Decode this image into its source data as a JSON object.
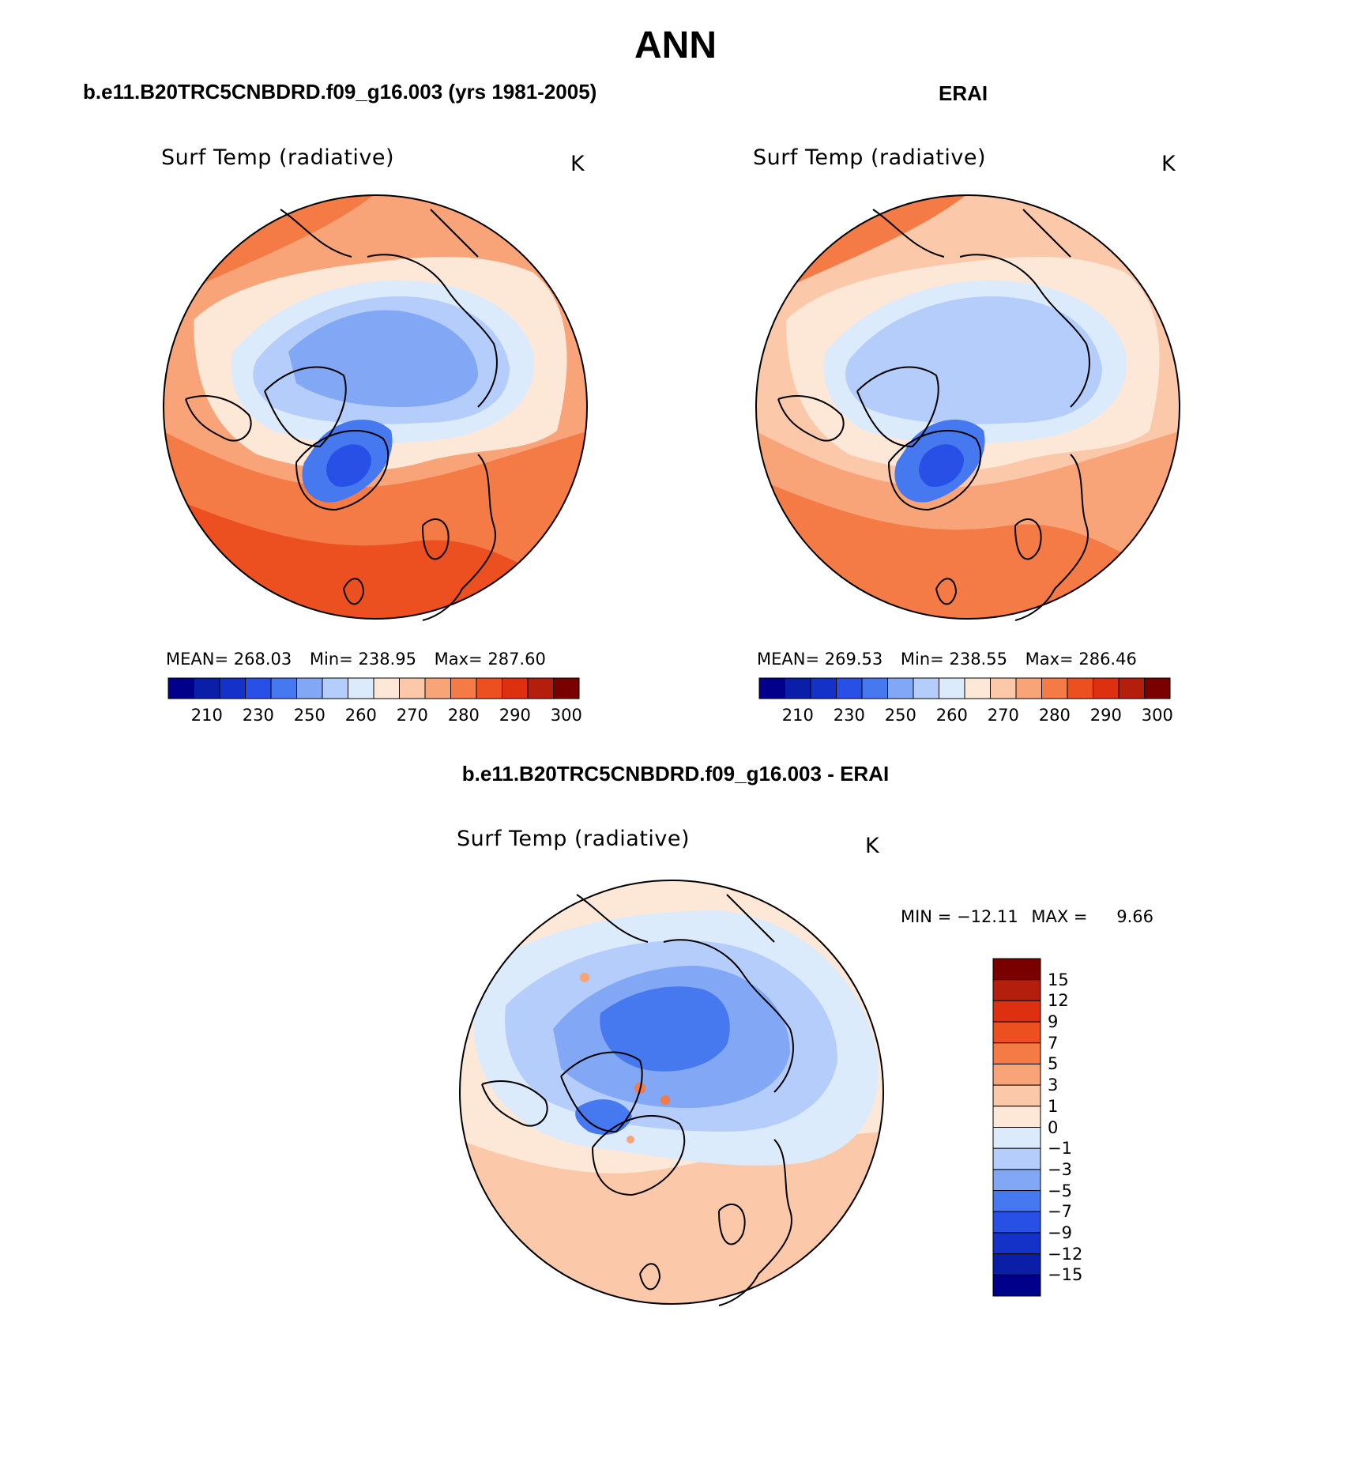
{
  "title": "ANN",
  "panels": [
    {
      "subtitle": "b.e11.B20TRC5CNBDRD.f09_g16.003 (yrs 1981-2005)",
      "variable": "Surf Temp (radiative)",
      "units": "K",
      "stats": {
        "mean_label": "MEAN=",
        "mean": "268.03",
        "min_label": "Min=",
        "min": "238.95",
        "max_label": "Max=",
        "max": "287.60"
      }
    },
    {
      "subtitle": "ERAI",
      "variable": "Surf Temp (radiative)",
      "units": "K",
      "stats": {
        "mean_label": "MEAN=",
        "mean": "269.53",
        "min_label": "Min=",
        "min": "238.55",
        "max_label": "Max=",
        "max": "286.46"
      }
    },
    {
      "subtitle": "b.e11.B20TRC5CNBDRD.f09_g16.003 - ERAI",
      "variable": "Surf Temp (radiative)",
      "units": "K",
      "stats": {
        "min_label": "MIN =",
        "min": "−12.11",
        "max_label": "MAX =",
        "max": "9.66"
      }
    }
  ],
  "abs_colorbar": {
    "colors": [
      "#00008b",
      "#0a1ea8",
      "#1432c8",
      "#2850e6",
      "#4678f0",
      "#82a8f5",
      "#b4cdfa",
      "#dcebfc",
      "#fde8d8",
      "#fcc8aa",
      "#f8a478",
      "#f47a46",
      "#ec5020",
      "#dc3010",
      "#b41e0c",
      "#7a0000"
    ],
    "tick_labels": [
      "210",
      "230",
      "250",
      "260",
      "270",
      "280",
      "290",
      "300"
    ]
  },
  "diff_colorbar": {
    "colors": [
      "#00008b",
      "#0a1ea8",
      "#1432c8",
      "#2850e6",
      "#4678f0",
      "#82a8f5",
      "#b4cdfa",
      "#dcebfc",
      "#fde8d8",
      "#fcc8aa",
      "#f8a478",
      "#f47a46",
      "#ec5020",
      "#dc3010",
      "#b41e0c",
      "#7a0000"
    ],
    "tick_labels": [
      "−15",
      "−12",
      "−9",
      "−7",
      "−5",
      "−3",
      "−1",
      "0",
      "1",
      "3",
      "5",
      "7",
      "9",
      "12",
      "15"
    ]
  }
}
